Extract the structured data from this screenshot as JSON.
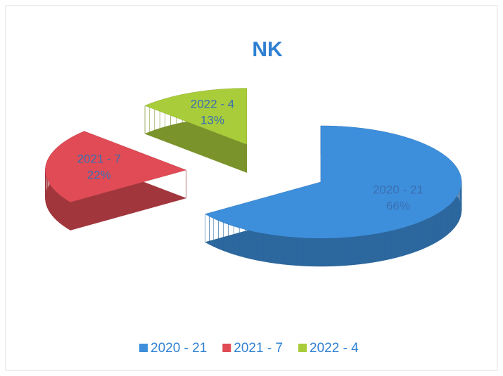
{
  "chart_data": {
    "type": "pie",
    "title": "NK",
    "categories": [
      "2020 - 21",
      "2021 - 7",
      "2022 - 4"
    ],
    "values": [
      66,
      22,
      13
    ],
    "value_labels": [
      "66%",
      "22%",
      "13%"
    ],
    "colors": [
      "#3d8fdc",
      "#e04b55",
      "#a9cc3b"
    ],
    "legend": "bottom"
  }
}
